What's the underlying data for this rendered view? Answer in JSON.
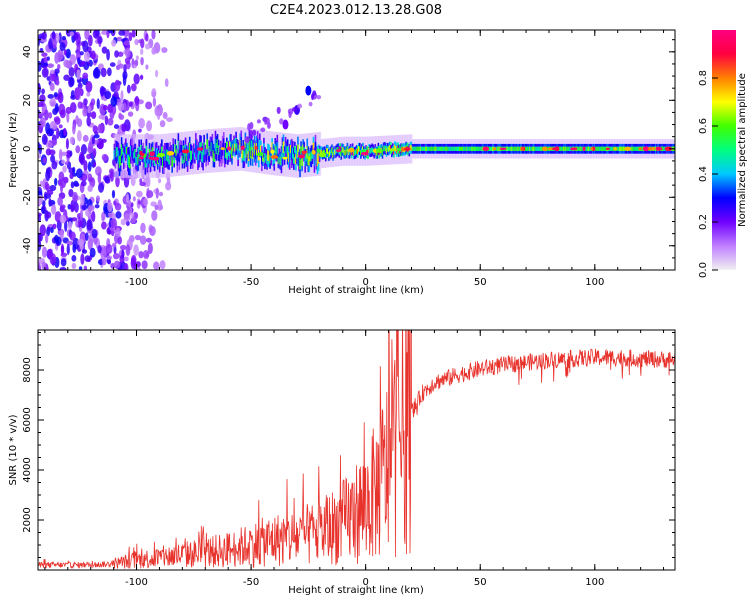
{
  "title": "C2E4.2023.012.13.28.G08",
  "colors": {
    "snr_line": "#e8322c",
    "axes": "#000000",
    "colorbar_stops": [
      "#f0f0f0",
      "#c080ff",
      "#7000ff",
      "#0000ff",
      "#00c8ff",
      "#00ff80",
      "#40ff00",
      "#ffff00",
      "#ff8000",
      "#ff0040",
      "#ff0080"
    ]
  },
  "chart_data": [
    {
      "type": "heatmap",
      "title": "C2E4.2023.012.13.28.G08",
      "xlabel": "Height of straight line (km)",
      "ylabel": "Frequency (Hz)",
      "xlim": [
        -143,
        135
      ],
      "ylim": [
        -50,
        49
      ],
      "x_ticks": [
        -100,
        -50,
        0,
        50,
        100
      ],
      "x_tick_labels": [
        "-100",
        "-50",
        "0",
        "50",
        "100"
      ],
      "y_ticks": [
        -40,
        -20,
        0,
        20,
        40
      ],
      "y_tick_labels": [
        "-40",
        "-20",
        "0",
        "20",
        "40"
      ],
      "colorbar": {
        "label": "Normalized spectral amplitude",
        "range": [
          0,
          1
        ],
        "ticks": [
          0.0,
          0.2,
          0.4,
          0.6,
          0.8
        ],
        "tick_labels": [
          "0.0",
          "0.2",
          "0.4",
          "0.6",
          "0.8"
        ]
      },
      "features": {
        "center_line": [
          [
            -110,
            -3
          ],
          [
            -90,
            -3
          ],
          [
            -70,
            -1
          ],
          [
            -55,
            0
          ],
          [
            -40,
            -2
          ],
          [
            -30,
            -3
          ],
          [
            -10,
            -1
          ],
          [
            0,
            -1
          ],
          [
            20,
            0
          ],
          [
            50,
            0
          ],
          [
            80,
            0
          ],
          [
            110,
            0
          ],
          [
            135,
            0
          ]
        ],
        "diffuse_noise_region": [
          -143,
          -108
        ],
        "diagonal_feature": [
          [
            -35,
            10
          ],
          [
            -30,
            16
          ],
          [
            -25,
            24
          ]
        ]
      }
    },
    {
      "type": "line",
      "xlabel": "Height of straight line (km)",
      "ylabel": "SNR (10 * v/v)",
      "xlim": [
        -143,
        135
      ],
      "ylim": [
        0,
        9600
      ],
      "x_ticks": [
        -100,
        -50,
        0,
        50,
        100
      ],
      "x_tick_labels": [
        "-100",
        "-50",
        "0",
        "50",
        "100"
      ],
      "y_ticks": [
        2000,
        4000,
        6000,
        8000
      ],
      "y_tick_labels": [
        "2000",
        "4000",
        "6000",
        "8000"
      ],
      "trend": {
        "x": [
          -143,
          -120,
          -110,
          -100,
          -90,
          -80,
          -70,
          -60,
          -50,
          -40,
          -30,
          -20,
          -10,
          0,
          5,
          10,
          15,
          20,
          25,
          30,
          40,
          50,
          60,
          70,
          80,
          90,
          100,
          110,
          120,
          135
        ],
        "y": [
          200,
          200,
          250,
          400,
          500,
          600,
          700,
          800,
          1000,
          1200,
          1300,
          1500,
          1900,
          2600,
          3200,
          4200,
          5400,
          6300,
          7100,
          7500,
          7800,
          8050,
          8200,
          8300,
          8400,
          8450,
          8500,
          8500,
          8450,
          8400
        ]
      }
    }
  ]
}
